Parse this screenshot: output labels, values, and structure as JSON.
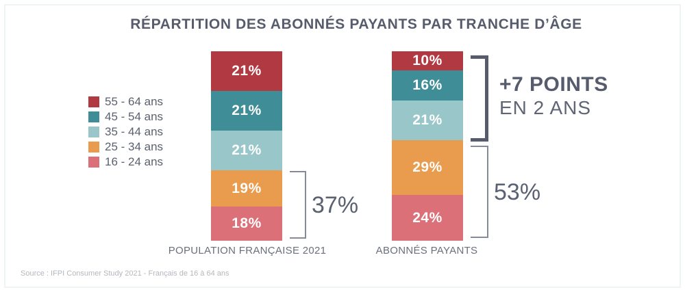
{
  "title": "RÉPARTITION DES ABONNÉS PAYANTS PAR TRANCHE D’ÂGE",
  "source": "Source : IFPI Consumer Study 2021 - Français de 16 à 64 ans",
  "colors": {
    "age_55_64": "#b13a42",
    "age_45_54": "#3f8d96",
    "age_35_44": "#98c6c9",
    "age_25_34": "#e99c4e",
    "age_16_24": "#dc7078",
    "text_dark": "#565c6b",
    "bracket_gray": "#858b96"
  },
  "chart_data": {
    "type": "bar",
    "subtype": "stacked-vertical",
    "title": "RÉPARTITION DES ABONNÉS PAYANTS PAR TRANCHE D’ÂGE",
    "categories": [
      "POPULATION FRANÇAISE 2021",
      "ABONNÉS PAYANTS"
    ],
    "series": [
      {
        "name": "55 - 64 ans",
        "color": "#b13a42",
        "values": [
          21,
          10
        ]
      },
      {
        "name": "45 - 54 ans",
        "color": "#3f8d96",
        "values": [
          21,
          16
        ]
      },
      {
        "name": "35 - 44 ans",
        "color": "#98c6c9",
        "values": [
          21,
          21
        ]
      },
      {
        "name": "25 - 34 ans",
        "color": "#e99c4e",
        "values": [
          19,
          29
        ]
      },
      {
        "name": "16 - 24 ans",
        "color": "#dc7078",
        "values": [
          18,
          24
        ]
      }
    ],
    "value_unit": "%",
    "ylim": [
      0,
      100
    ],
    "grid": false,
    "legend_position": "left",
    "annotations": [
      {
        "text": "37%",
        "target": "POPULATION FRANÇAISE 2021 : 16-34 ans (19% + 18%)"
      },
      {
        "text": "53%",
        "target": "ABONNÉS PAYANTS : 16-34 ans (29% + 24%)"
      },
      {
        "text": "+7 POINTS EN 2 ANS",
        "target": "ABONNÉS PAYANTS : 35-64 ans (10% + 16% + 21%)"
      }
    ]
  },
  "annotations": {
    "pop_bottom_pct": "37%",
    "sub_bottom_pct": "53%",
    "delta_bold": "+7 POINTS",
    "delta_sub": "EN 2 ANS"
  }
}
